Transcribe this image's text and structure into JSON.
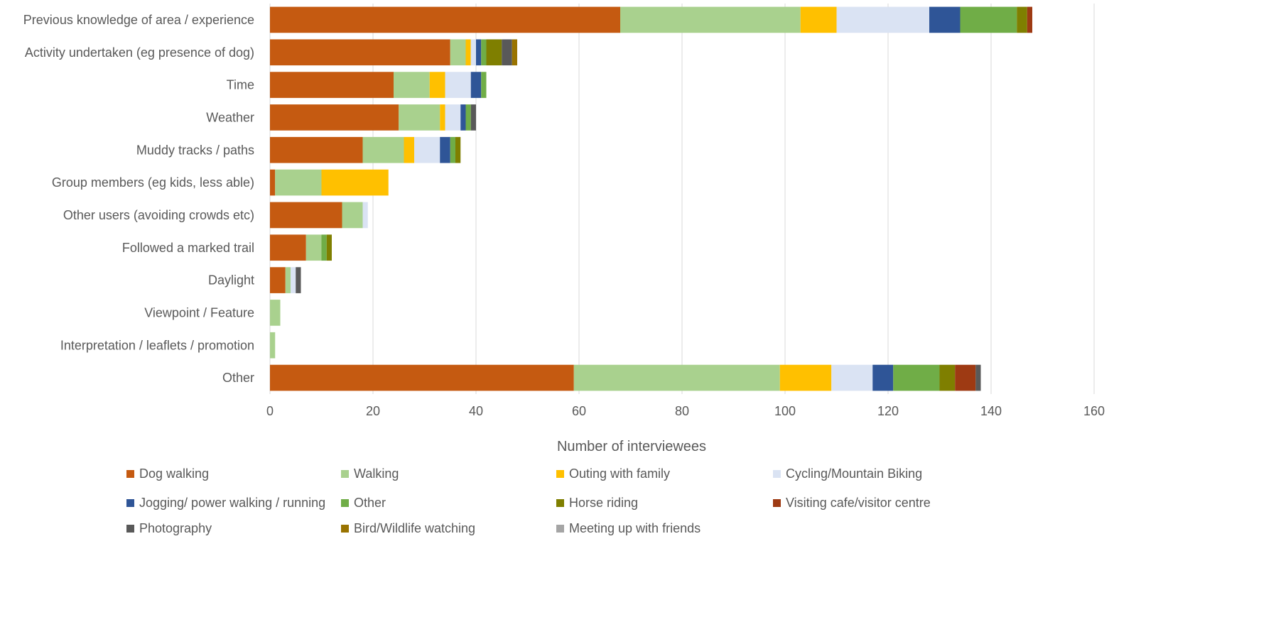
{
  "chart_data": {
    "type": "bar",
    "orientation": "horizontal",
    "stacked": true,
    "title": "",
    "xlabel": "Number of interviewees",
    "ylabel": "",
    "xlim": [
      0,
      160
    ],
    "x_ticks": [
      0,
      20,
      40,
      60,
      80,
      100,
      120,
      140,
      160
    ],
    "grid": "vertical",
    "legend_position": "bottom",
    "categories": [
      "Previous knowledge of area / experience",
      "Activity undertaken (eg presence of dog)",
      "Time",
      "Weather",
      "Muddy tracks / paths",
      "Group members (eg kids, less able)",
      "Other users (avoiding crowds etc)",
      "Followed a marked trail",
      "Daylight",
      "Viewpoint / Feature",
      "Interpretation / leaflets / promotion",
      "Other"
    ],
    "series": [
      {
        "name": "Dog walking",
        "color": "#C55A11",
        "values": [
          68,
          35,
          24,
          25,
          18,
          1,
          14,
          7,
          3,
          0,
          0,
          59
        ]
      },
      {
        "name": "Walking",
        "color": "#A9D18E",
        "values": [
          35,
          3,
          7,
          8,
          8,
          9,
          4,
          3,
          1,
          2,
          1,
          40
        ]
      },
      {
        "name": "Outing with family",
        "color": "#FFC000",
        "values": [
          7,
          1,
          3,
          1,
          2,
          13,
          0,
          0,
          0,
          0,
          0,
          10
        ]
      },
      {
        "name": "Cycling/Mountain Biking",
        "color": "#DAE3F3",
        "values": [
          18,
          1,
          5,
          3,
          5,
          0,
          1,
          0,
          1,
          0,
          0,
          8
        ]
      },
      {
        "name": "Jogging/ power walking / running",
        "color": "#2F5597",
        "values": [
          6,
          1,
          2,
          1,
          2,
          0,
          0,
          0,
          0,
          0,
          0,
          4
        ]
      },
      {
        "name": "Other",
        "color": "#70AD47",
        "values": [
          11,
          1,
          1,
          1,
          1,
          0,
          0,
          1,
          0,
          0,
          0,
          9
        ]
      },
      {
        "name": "Horse riding",
        "color": "#7F7F00",
        "values": [
          2,
          3,
          0,
          0,
          1,
          0,
          0,
          1,
          0,
          0,
          0,
          3
        ]
      },
      {
        "name": "Visiting cafe/visitor centre",
        "color": "#9E3A13",
        "values": [
          1,
          0,
          0,
          0,
          0,
          0,
          0,
          0,
          0,
          0,
          0,
          4
        ]
      },
      {
        "name": "Photography",
        "color": "#595959",
        "values": [
          0,
          2,
          0,
          1,
          0,
          0,
          0,
          0,
          1,
          0,
          0,
          1
        ]
      },
      {
        "name": "Bird/Wildlife watching",
        "color": "#997300",
        "values": [
          0,
          1,
          0,
          0,
          0,
          0,
          0,
          0,
          0,
          0,
          0,
          0
        ]
      },
      {
        "name": "Meeting up with friends",
        "color": "#A5A5A5",
        "values": [
          0,
          0,
          0,
          0,
          0,
          0,
          0,
          0,
          0,
          0,
          0,
          0
        ]
      }
    ]
  }
}
